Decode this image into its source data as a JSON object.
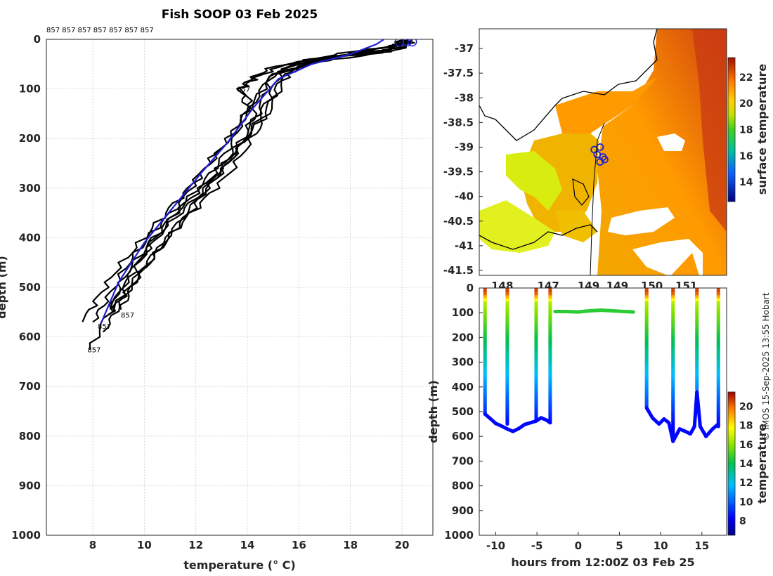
{
  "title": "Fish SOOP 03 Feb 2025",
  "credit": "© IMOS 15-Sep-2025 13:55 Hobart",
  "colors": {
    "profile": "#000000",
    "mean_profile": "#1f1fd6",
    "grid": "#cfcfcf",
    "axis": "#262626"
  },
  "chart_data": [
    {
      "id": "profiles",
      "type": "line",
      "xlabel": "temperature (° C)",
      "ylabel": "depth (m)",
      "xlim": [
        6.2,
        21.2
      ],
      "ylim": [
        1000,
        0
      ],
      "xticks": [
        "8",
        "10",
        "12",
        "14",
        "16",
        "18",
        "20"
      ],
      "yticks": [
        "0",
        "100",
        "200",
        "300",
        "400",
        "500",
        "600",
        "700",
        "800",
        "900",
        "1000"
      ],
      "grid": true,
      "top_label": "857 857 857 857 857 857 857",
      "end_labels": [
        {
          "text": "857",
          "t": 13.7,
          "d": 100
        },
        {
          "text": "857",
          "t": 9.2,
          "d": 555
        },
        {
          "text": "857",
          "t": 8.3,
          "d": 578
        },
        {
          "text": "857",
          "t": 7.9,
          "d": 625
        }
      ],
      "series": [
        {
          "name": "cast-1",
          "t": [
            20.3,
            20.0,
            18.6,
            16.5,
            15.0,
            14.2,
            13.3,
            12.3,
            11.4,
            10.3,
            9.4,
            8.6,
            8.0
          ],
          "d": [
            2,
            20,
            30,
            40,
            70,
            130,
            200,
            260,
            330,
            390,
            450,
            520,
            570
          ]
        },
        {
          "name": "cast-2",
          "t": [
            20.1,
            19.5,
            18.0,
            16.0,
            14.9,
            14.4,
            13.6,
            12.7,
            11.9,
            10.9,
            9.8,
            9.0,
            8.4
          ],
          "d": [
            2,
            15,
            25,
            45,
            75,
            150,
            220,
            280,
            340,
            400,
            470,
            540,
            590
          ]
        },
        {
          "name": "cast-3",
          "t": [
            20.4,
            20.2,
            18.9,
            16.8,
            15.3,
            14.7,
            14.1,
            13.1,
            12.0,
            10.8,
            9.6,
            8.6,
            7.9
          ],
          "d": [
            2,
            12,
            30,
            45,
            65,
            130,
            190,
            260,
            320,
            380,
            460,
            550,
            625
          ]
        },
        {
          "name": "cast-4",
          "t": [
            20.0,
            19.4,
            17.2,
            15.0,
            14.1,
            13.7,
            14.0,
            13.4,
            12.6,
            11.4,
            10.3,
            9.4,
            8.8
          ],
          "d": [
            2,
            25,
            35,
            55,
            80,
            100,
            140,
            210,
            270,
            340,
            410,
            480,
            550
          ]
        },
        {
          "name": "cast-5",
          "t": [
            20.2,
            19.8,
            18.3,
            16.2,
            14.8,
            14.0,
            13.0,
            12.1,
            11.0,
            10.0,
            9.0,
            8.2,
            7.6
          ],
          "d": [
            2,
            18,
            28,
            50,
            80,
            150,
            220,
            280,
            340,
            400,
            460,
            520,
            570
          ]
        },
        {
          "name": "cast-6",
          "t": [
            20.3,
            20.1,
            18.7,
            16.9,
            15.5,
            14.9,
            14.2,
            13.3,
            12.2,
            11.1,
            10.2,
            9.3,
            8.6
          ],
          "d": [
            2,
            10,
            22,
            40,
            70,
            140,
            200,
            270,
            330,
            390,
            450,
            510,
            555
          ]
        },
        {
          "name": "cast-7",
          "t": [
            19.9,
            19.7,
            18.0,
            16.1,
            15.2,
            14.6,
            13.4,
            12.4,
            11.2,
            10.2,
            9.2,
            8.7
          ],
          "d": [
            2,
            12,
            30,
            50,
            90,
            160,
            230,
            290,
            350,
            410,
            480,
            545
          ]
        },
        {
          "name": "cast-8",
          "t": [
            20.2,
            19.6,
            17.8,
            15.4,
            14.3,
            13.8,
            14.3,
            13.7,
            12.8,
            11.7,
            10.6,
            9.6,
            9.1
          ],
          "d": [
            2,
            20,
            32,
            52,
            78,
            98,
            150,
            220,
            280,
            345,
            420,
            490,
            545
          ]
        }
      ],
      "mean": {
        "name": "mean",
        "t": [
          19.3,
          19.0,
          18.0,
          16.5,
          15.2,
          14.2,
          13.2,
          12.2,
          11.1,
          10.0,
          9.0,
          8.3
        ],
        "d": [
          0,
          10,
          30,
          50,
          80,
          140,
          210,
          270,
          340,
          410,
          490,
          575
        ]
      },
      "markers": [
        {
          "t": 19.9,
          "d": 2
        },
        {
          "t": 20.2,
          "d": 2
        },
        {
          "t": 20.4,
          "d": 2
        }
      ]
    },
    {
      "id": "map",
      "type": "heatmap",
      "colorbar_label": "surface temperature",
      "colorbar_range": [
        12.5,
        23.5
      ],
      "colorbar_ticks": [
        "14",
        "16",
        "18",
        "20",
        "22"
      ],
      "xlim": [
        147.6,
        151.9
      ],
      "ylim": [
        -41.6,
        -36.6
      ],
      "xticks": [
        "148",
        "147",
        "149",
        "149",
        "150",
        "151"
      ],
      "yticks": [
        "-37",
        "-37.5",
        "-38",
        "-38.5",
        "-39",
        "-39.5",
        "-40",
        "-40.5",
        "-41",
        "-41.5"
      ],
      "track": [
        {
          "lon": 149.6,
          "lat": -39.05
        },
        {
          "lon": 149.7,
          "lat": -39.0
        },
        {
          "lon": 149.65,
          "lat": -39.15
        },
        {
          "lon": 149.75,
          "lat": -39.2
        },
        {
          "lon": 149.7,
          "lat": -39.3
        },
        {
          "lon": 149.78,
          "lat": -39.25
        }
      ]
    },
    {
      "id": "section",
      "type": "scatter",
      "xlabel": "hours from 12:00Z 03 Feb 25",
      "ylabel": "depth (m)",
      "xlim": [
        -12,
        18
      ],
      "ylim": [
        1000,
        0
      ],
      "xticks": [
        "-10",
        "-5",
        "0",
        "5",
        "10",
        "15"
      ],
      "yticks": [
        "0",
        "100",
        "200",
        "300",
        "400",
        "500",
        "600",
        "700",
        "800",
        "900",
        "1000"
      ],
      "colorbar_label": "temperature",
      "colorbar_range": [
        6.5,
        21.5
      ],
      "colorbar_ticks": [
        "8",
        "10",
        "12",
        "14",
        "16",
        "18",
        "20"
      ],
      "casts": [
        {
          "h": -11.3,
          "bottom": 510
        },
        {
          "h": -8.6,
          "bottom": 550
        },
        {
          "h": -5.1,
          "bottom": 535
        },
        {
          "h": -3.4,
          "bottom": 540
        },
        {
          "h": 8.3,
          "bottom": 480
        },
        {
          "h": 11.5,
          "bottom": 615
        },
        {
          "h": 14.4,
          "bottom": 410
        },
        {
          "h": 17.0,
          "bottom": 560
        }
      ],
      "bottom_track": {
        "h": [
          -11.3,
          -10.6,
          -10.0,
          -9.5,
          -8.6,
          -7.9,
          -7.2,
          -6.5,
          -5.8,
          -5.1,
          -4.5,
          -3.8,
          -3.4,
          8.3,
          9.0,
          9.8,
          10.4,
          11.0,
          11.5,
          12.3,
          13.0,
          13.6,
          14.1,
          14.4,
          14.8,
          15.5,
          16.3,
          17.0
        ],
        "d": [
          510,
          530,
          548,
          555,
          570,
          580,
          568,
          552,
          545,
          538,
          525,
          535,
          545,
          485,
          525,
          550,
          530,
          545,
          620,
          570,
          580,
          590,
          560,
          420,
          560,
          600,
          570,
          550
        ]
      },
      "shallow_segment": {
        "h": [
          -2.8,
          -1.5,
          0,
          1.5,
          2.8,
          4.0,
          5.5,
          6.7
        ],
        "d": [
          95,
          95,
          97,
          92,
          90,
          92,
          95,
          97
        ]
      }
    }
  ]
}
